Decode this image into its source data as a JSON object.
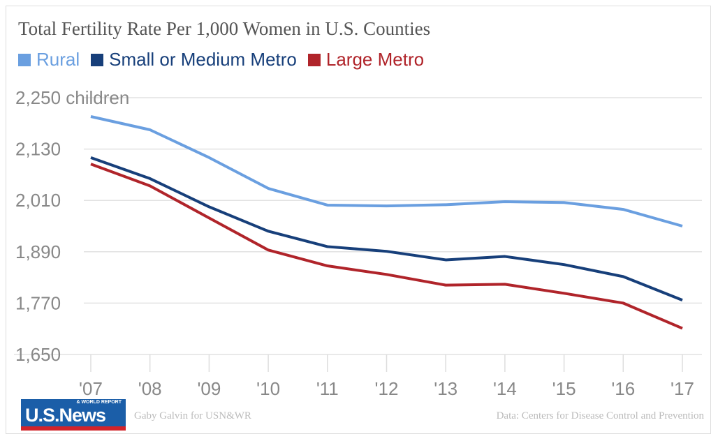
{
  "chart_data": {
    "type": "line",
    "title": "Total Fertility Rate Per 1,000 Women in U.S. Counties",
    "categories": [
      "'07",
      "'08",
      "'09",
      "'10",
      "'11",
      "'12",
      "'13",
      "'14",
      "'15",
      "'16",
      "'17"
    ],
    "y_ticks": [
      "1,650",
      "1,770",
      "1,890",
      "2,010",
      "2,130",
      "2,250 children"
    ],
    "y_tick_values": [
      1650,
      1770,
      1890,
      2010,
      2130,
      2250
    ],
    "ylim": [
      1650,
      2250
    ],
    "grid": true,
    "legend_position": "top-left",
    "series": [
      {
        "name": "Rural",
        "color": "#6a9fe0",
        "values": [
          2206,
          2175,
          2110,
          2038,
          1999,
          1997,
          2000,
          2007,
          2005,
          1989,
          1950
        ]
      },
      {
        "name": "Small or Medium Metro",
        "color": "#173f7a",
        "values": [
          2110,
          2061,
          1995,
          1938,
          1902,
          1891,
          1871,
          1879,
          1860,
          1832,
          1777
        ]
      },
      {
        "name": "Large Metro",
        "color": "#b0242a",
        "values": [
          2095,
          2044,
          1969,
          1894,
          1857,
          1837,
          1812,
          1814,
          1793,
          1770,
          1711
        ]
      }
    ]
  },
  "footer": {
    "logo_text": "U.S.News",
    "logo_subtext": "& WORLD REPORT",
    "credit": "Gaby Galvin for USN&WR",
    "source": "Data: Centers for Disease Control and Prevention"
  }
}
